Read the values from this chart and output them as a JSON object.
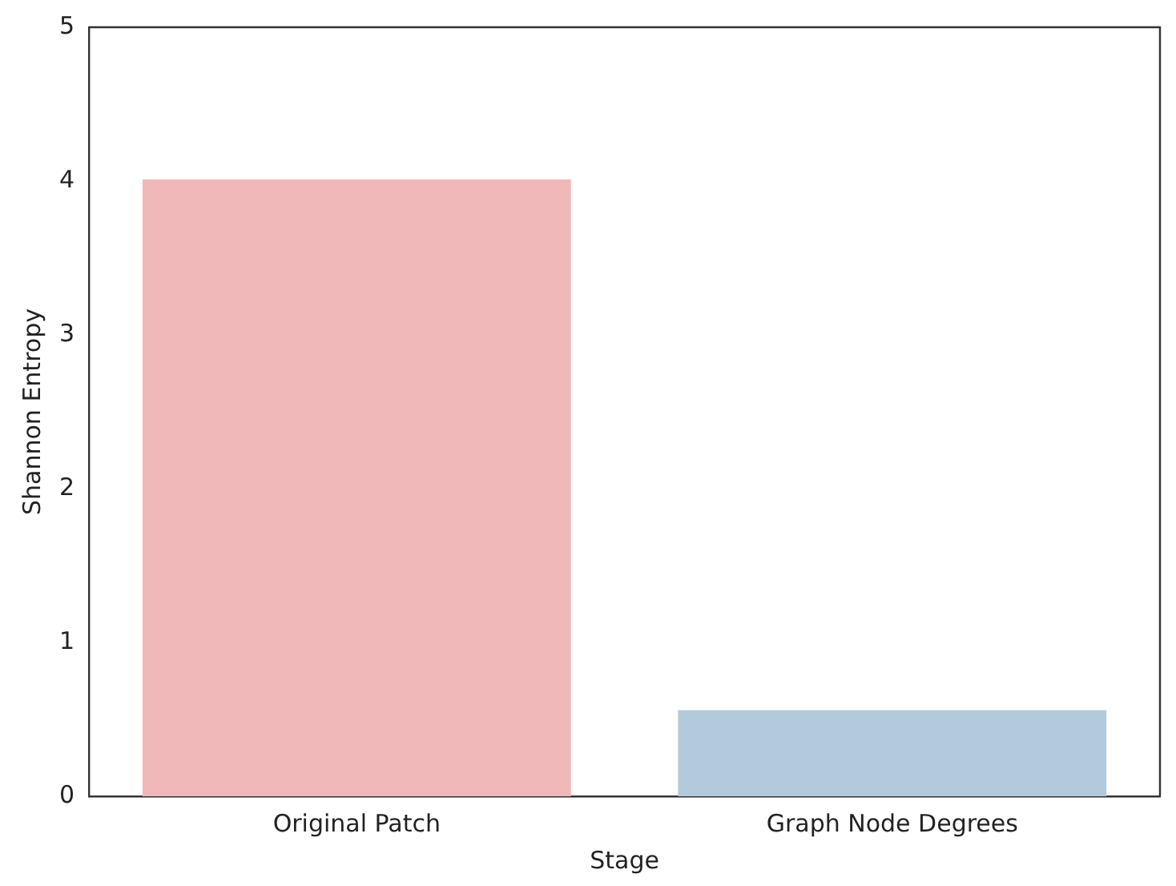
{
  "chart_data": {
    "type": "bar",
    "xlabel": "Stage",
    "ylabel": "Shannon Entropy",
    "categories": [
      "Original Patch",
      "Graph Node Degrees"
    ],
    "values": [
      4.01,
      0.56
    ],
    "colors": [
      "#f0b8b8",
      "#b3c9dc"
    ],
    "ylim": [
      0,
      5
    ],
    "yticks": [
      0,
      1,
      2,
      3,
      4,
      5
    ],
    "grid": false,
    "legend": false
  }
}
